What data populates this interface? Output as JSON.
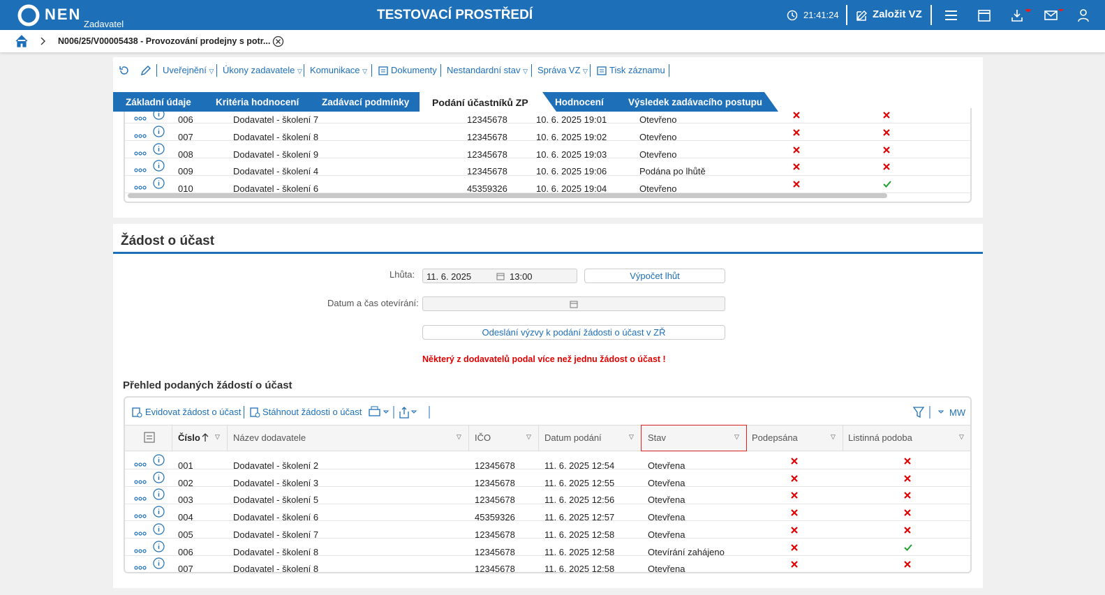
{
  "header": {
    "logo": "NEN",
    "role": "Zadavatel",
    "environment": "TESTOVACÍ PROSTŘEDÍ",
    "time": "21:41:24",
    "create": "Založit VZ"
  },
  "breadcrumb": "N006/25/V00005438 - Provozování prodejny s potr...",
  "toolbar": [
    "Uveřejnění",
    "Úkony zadavatele",
    "Komunikace",
    "Dokumenty",
    "Nestandardní stav",
    "Správa VZ",
    "Tisk záznamu"
  ],
  "tabs": [
    "Základní údaje",
    "Kritéria hodnocení",
    "Zadávací podmínky",
    "Podání účastníků ZP",
    "Hodnocení",
    "Výsledek zadávacího postupu"
  ],
  "active_tab": 3,
  "top_table": {
    "rows": [
      [
        "006",
        "Dodavatel - školení 7",
        "12345678",
        "10. 6. 2025 19:01",
        "Otevřeno",
        false,
        false
      ],
      [
        "007",
        "Dodavatel - školení 8",
        "12345678",
        "10. 6. 2025 19:02",
        "Otevřeno",
        false,
        false
      ],
      [
        "008",
        "Dodavatel - školení 9",
        "12345678",
        "10. 6. 2025 19:03",
        "Otevřeno",
        false,
        false
      ],
      [
        "009",
        "Dodavatel - školení 4",
        "12345678",
        "10. 6. 2025 19:06",
        "Podána po lhůtě",
        false,
        false
      ],
      [
        "010",
        "Dodavatel - školení 6",
        "45359326",
        "10. 6. 2025 19:04",
        "Otevřeno",
        false,
        true
      ]
    ]
  },
  "section": {
    "title": "Žádost o účast",
    "deadline_label": "Lhůta:",
    "deadline_date": "11. 6. 2025",
    "deadline_time": "13:00",
    "calc_button": "Výpočet lhůt",
    "opening_label": "Datum a čas otevírání:",
    "send_button": "Odeslání výzvy k podání žádosti o účast v ZŘ",
    "warning": "Některý z dodavatelů podal více než jednu žádost o účast !"
  },
  "overview": {
    "title": "Přehled podaných žádostí o účast",
    "actions": [
      "Evidovat žádost o účast",
      "Stáhnout žádosti o účast"
    ],
    "mw": "MW",
    "columns": [
      "Číslo",
      "Název dodavatele",
      "IČO",
      "Datum podání",
      "Stav",
      "Podepsána",
      "Listinná podoba"
    ],
    "rows": [
      [
        "001",
        "Dodavatel - školení 2",
        "12345678",
        "11. 6. 2025 12:54",
        "Otevřena",
        false,
        false
      ],
      [
        "002",
        "Dodavatel - školení 3",
        "12345678",
        "11. 6. 2025 12:55",
        "Otevřena",
        false,
        false
      ],
      [
        "003",
        "Dodavatel - školení 5",
        "12345678",
        "11. 6. 2025 12:56",
        "Otevřena",
        false,
        false
      ],
      [
        "004",
        "Dodavatel - školení 6",
        "45359326",
        "11. 6. 2025 12:57",
        "Otevřena",
        false,
        false
      ],
      [
        "005",
        "Dodavatel - školení 7",
        "12345678",
        "11. 6. 2025 12:58",
        "Otevřena",
        false,
        false
      ],
      [
        "006",
        "Dodavatel - školení 8",
        "12345678",
        "11. 6. 2025 12:58",
        "Otevírání zahájeno",
        false,
        true
      ],
      [
        "007",
        "Dodavatel - školení 8",
        "12345678",
        "11. 6. 2025 12:58",
        "Otevřena",
        false,
        false
      ]
    ]
  }
}
